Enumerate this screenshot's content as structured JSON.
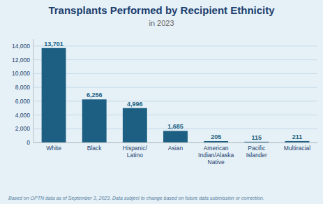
{
  "chart_data": {
    "type": "bar",
    "title": "Transplants Performed by Recipient Ethnicity",
    "subtitle": "in 2023",
    "categories": [
      "White",
      "Black",
      "Hispanic/\nLatino",
      "Asian",
      "American\nIndian/Alaska\nNative",
      "Pacific\nIslander",
      "Multiracial"
    ],
    "values": [
      13701,
      6256,
      4996,
      1685,
      205,
      115,
      211
    ],
    "value_labels": [
      "13,701",
      "6,256",
      "4,996",
      "1,685",
      "205",
      "115",
      "211"
    ],
    "data_labels": true,
    "color": "#1c5f82",
    "ylim": [
      0,
      15000
    ],
    "yticks": [
      0,
      {
        "value": 2000,
        "label": "2,000"
      },
      {
        "value": 4000,
        "label": "4,000"
      },
      {
        "value": 6000,
        "label": "6,000"
      },
      {
        "value": 8000,
        "label": "8,000"
      },
      {
        "value": 10000,
        "label": "10,000"
      },
      {
        "value": 12000,
        "label": "12,000"
      },
      {
        "value": 14000,
        "label": "14,000"
      }
    ],
    "grid": true,
    "footer": "Based on OPTN data as of September 3, 2023. Data subject to change based on future data submission or correction."
  }
}
